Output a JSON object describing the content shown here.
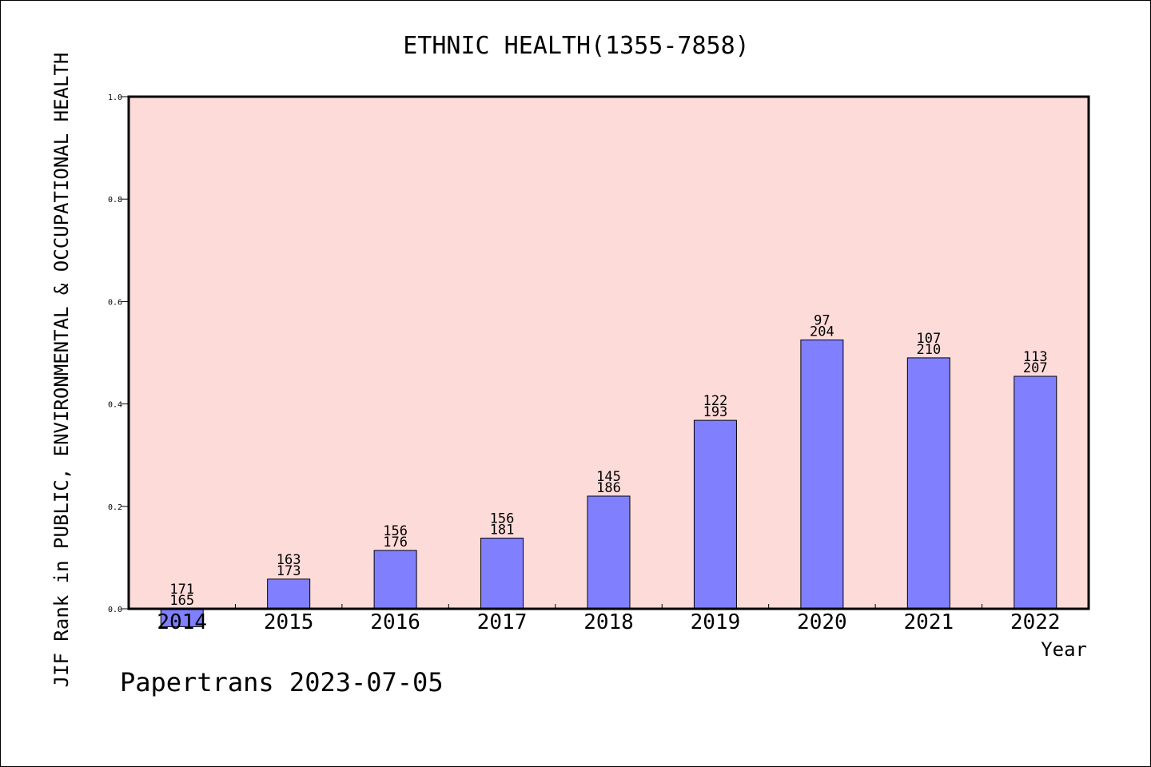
{
  "chart_data": {
    "type": "bar",
    "title": "ETHNIC HEALTH(1355-7858)",
    "ylabel": "JIF Rank in PUBLIC, ENVIRONMENTAL & OCCUPATIONAL HEALTH",
    "xlabel": "Year",
    "ylim": [
      0,
      1.0
    ],
    "yticks": [
      "0.0",
      "0.2",
      "0.4",
      "0.6",
      "0.8",
      "1.0"
    ],
    "ytick_values": [
      0.0,
      0.2,
      0.4,
      0.6,
      0.8,
      1.0
    ],
    "categories": [
      "2014",
      "2015",
      "2016",
      "2017",
      "2018",
      "2019",
      "2020",
      "2021",
      "2022"
    ],
    "values": [
      -0.035,
      0.058,
      0.114,
      0.138,
      0.22,
      0.368,
      0.525,
      0.49,
      0.454
    ],
    "rank": [
      171,
      163,
      156,
      156,
      145,
      122,
      97,
      107,
      113
    ],
    "total": [
      165,
      173,
      176,
      181,
      186,
      193,
      204,
      210,
      207
    ],
    "grid": false,
    "colors": {
      "plot_background": "#fddbd8",
      "bar_fill": "#8080ff",
      "bar_stroke": "#000000"
    }
  },
  "footer": "Papertrans 2023-07-05"
}
